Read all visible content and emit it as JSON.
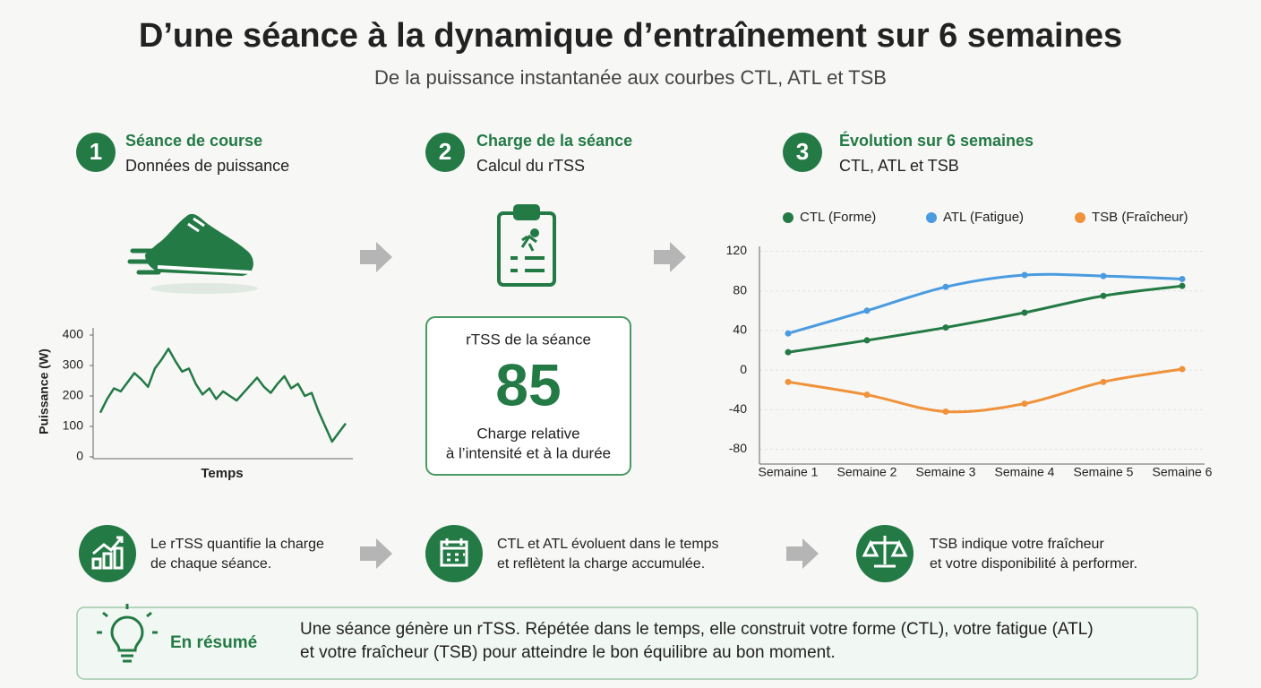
{
  "header": {
    "title": "D’une séance à la dynamique d’entraînement sur 6 semaines",
    "subtitle": "De la puissance instantanée aux courbes CTL, ATL et TSB"
  },
  "steps": [
    {
      "number": "1",
      "title": "Séance de course",
      "subtitle": "Données de puissance"
    },
    {
      "number": "2",
      "title": "Charge de la séance",
      "subtitle": "Calcul du rTSS"
    },
    {
      "number": "3",
      "title": "Évolution sur 6 semaines",
      "subtitle": "CTL, ATL et TSB"
    }
  ],
  "rtss_card": {
    "label": "rTSS de la séance",
    "value": 85,
    "caption_lines": [
      "Charge relative",
      "à l’intensité et à la durée"
    ]
  },
  "chart_data": [
    {
      "type": "line",
      "y_label": "Puissance (W)",
      "x_label": "Temps",
      "color": "#237a45",
      "values": [
        145,
        190,
        225,
        215,
        245,
        275,
        255,
        230,
        290,
        320,
        355,
        315,
        280,
        290,
        240,
        205,
        225,
        190,
        215,
        200,
        185,
        210,
        235,
        260,
        230,
        210,
        240,
        265,
        225,
        240,
        200,
        210,
        150,
        100,
        50,
        80,
        110
      ],
      "ylim": [
        0,
        400
      ],
      "yticks": [
        0,
        100,
        200,
        300,
        400
      ]
    },
    {
      "type": "line",
      "categories": [
        "Semaine 1",
        "Semaine 2",
        "Semaine 3",
        "Semaine 4",
        "Semaine 5",
        "Semaine 6"
      ],
      "series": [
        {
          "name": "CTL (Forme)",
          "color": "#237a45",
          "values": [
            18,
            30,
            43,
            58,
            75,
            85
          ]
        },
        {
          "name": "ATL (Fatigue)",
          "color": "#4a9be0",
          "values": [
            37,
            60,
            84,
            96,
            95,
            92
          ]
        },
        {
          "name": "TSB (Fraîcheur)",
          "color": "#f0923a",
          "values": [
            -12,
            -25,
            -42,
            -34,
            -12,
            1
          ]
        }
      ],
      "ylim": [
        -95,
        125
      ],
      "yticks": [
        -80,
        -40,
        0,
        40,
        80,
        120
      ],
      "grid": true
    }
  ],
  "notes": [
    {
      "lines": [
        "Le rTSS quantifie la charge",
        "de chaque séance."
      ]
    },
    {
      "lines": [
        "CTL et ATL évoluent dans le temps",
        "et reflètent la charge accumulée."
      ]
    },
    {
      "lines": [
        "TSB indique votre fraîcheur",
        "et votre disponibilité à performer."
      ]
    }
  ],
  "summary": {
    "title": "En résumé",
    "lines": [
      "Une séance génère un rTSS. Répétée dans le temps, elle construit votre forme (CTL), votre fatigue (ATL)",
      "et votre fraîcheur (TSB) pour atteindre le bon équilibre au bon moment."
    ]
  }
}
